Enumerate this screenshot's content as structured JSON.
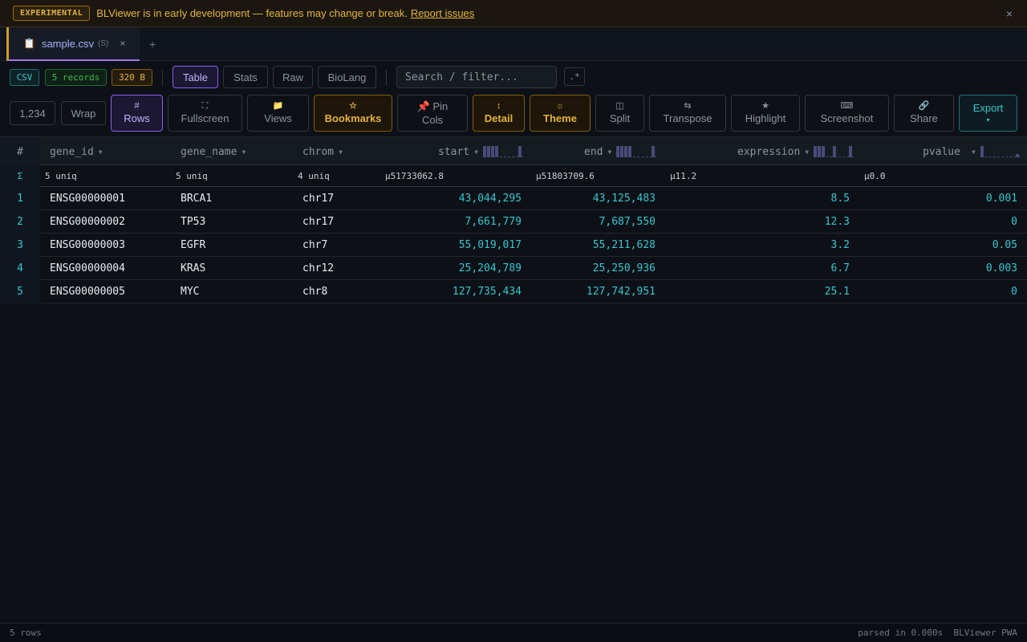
{
  "banner": {
    "badge": "EXPERIMENTAL",
    "message": "BLViewer is in early development — features may change or break.",
    "link": "Report issues",
    "close": "×"
  },
  "tabs": {
    "file_icon": "📋",
    "file_name": "sample.csv",
    "file_sub": "(S)",
    "close": "×",
    "add": "+"
  },
  "info": {
    "format": "CSV",
    "records": "5 records",
    "size": "320 B",
    "views": [
      "Table",
      "Stats",
      "Raw",
      "BioLang"
    ],
    "active_view": "Table",
    "search_placeholder": "Search / filter...",
    "regex": ".*"
  },
  "toolbar": {
    "number_format": "1,234",
    "wrap": "Wrap",
    "rows": {
      "icon": "#",
      "label": "Rows"
    },
    "fullscreen": {
      "icon": "⛶",
      "label": "Fullscreen"
    },
    "views": {
      "icon": "📁",
      "label": "Views"
    },
    "bookmarks": {
      "icon": "☆",
      "label": "Bookmarks"
    },
    "pin_cols": {
      "icon": "📌",
      "label": "Pin",
      "label2": "Cols"
    },
    "detail": {
      "icon": "↕",
      "label": "Detail"
    },
    "theme": {
      "icon": "☼",
      "label": "Theme"
    },
    "split": {
      "icon": "◫",
      "label": "Split"
    },
    "transpose": {
      "icon": "⇆",
      "label": "Transpose"
    },
    "highlight": {
      "icon": "★",
      "label": "Highlight"
    },
    "screenshot": {
      "icon": "⌨",
      "label": "Screenshot"
    },
    "share": {
      "icon": "🔗",
      "label": "Share"
    },
    "export": {
      "label": "Export",
      "icon": "▾"
    }
  },
  "table": {
    "index_header": "#",
    "sort_glyph": "▼",
    "columns": [
      "gene_id",
      "gene_name",
      "chrom",
      "start",
      "end",
      "expression",
      "pvalue"
    ],
    "summary_glyph": "Σ",
    "summary": [
      "5 uniq",
      "5 uniq",
      "4 uniq",
      "μ51733062.8",
      "μ51803709.6",
      "μ11.2",
      "μ0.0"
    ],
    "rows": [
      {
        "n": "1",
        "gene_id": "ENSG00000001",
        "gene_name": "BRCA1",
        "chrom": "chr17",
        "start": "43,044,295",
        "end": "43,125,483",
        "expression": "8.5",
        "pvalue": "0.001"
      },
      {
        "n": "2",
        "gene_id": "ENSG00000002",
        "gene_name": "TP53",
        "chrom": "chr17",
        "start": "7,661,779",
        "end": "7,687,550",
        "expression": "12.3",
        "pvalue": "0"
      },
      {
        "n": "3",
        "gene_id": "ENSG00000003",
        "gene_name": "EGFR",
        "chrom": "chr7",
        "start": "55,019,017",
        "end": "55,211,628",
        "expression": "3.2",
        "pvalue": "0.05"
      },
      {
        "n": "4",
        "gene_id": "ENSG00000004",
        "gene_name": "KRAS",
        "chrom": "chr12",
        "start": "25,204,789",
        "end": "25,250,936",
        "expression": "6.7",
        "pvalue": "0.003"
      },
      {
        "n": "5",
        "gene_id": "ENSG00000005",
        "gene_name": "MYC",
        "chrom": "chr8",
        "start": "127,735,434",
        "end": "127,742,951",
        "expression": "25.1",
        "pvalue": "0"
      }
    ]
  },
  "footer": {
    "rows": "5 rows",
    "parsed": "parsed in 0.000s",
    "app": "BLViewer PWA"
  },
  "colors": {
    "accent_purple": "#8b5cf6",
    "accent_cyan": "#39c5cf",
    "accent_orange": "#e3b341",
    "accent_green": "#3fb950",
    "background": "#0d1117"
  }
}
